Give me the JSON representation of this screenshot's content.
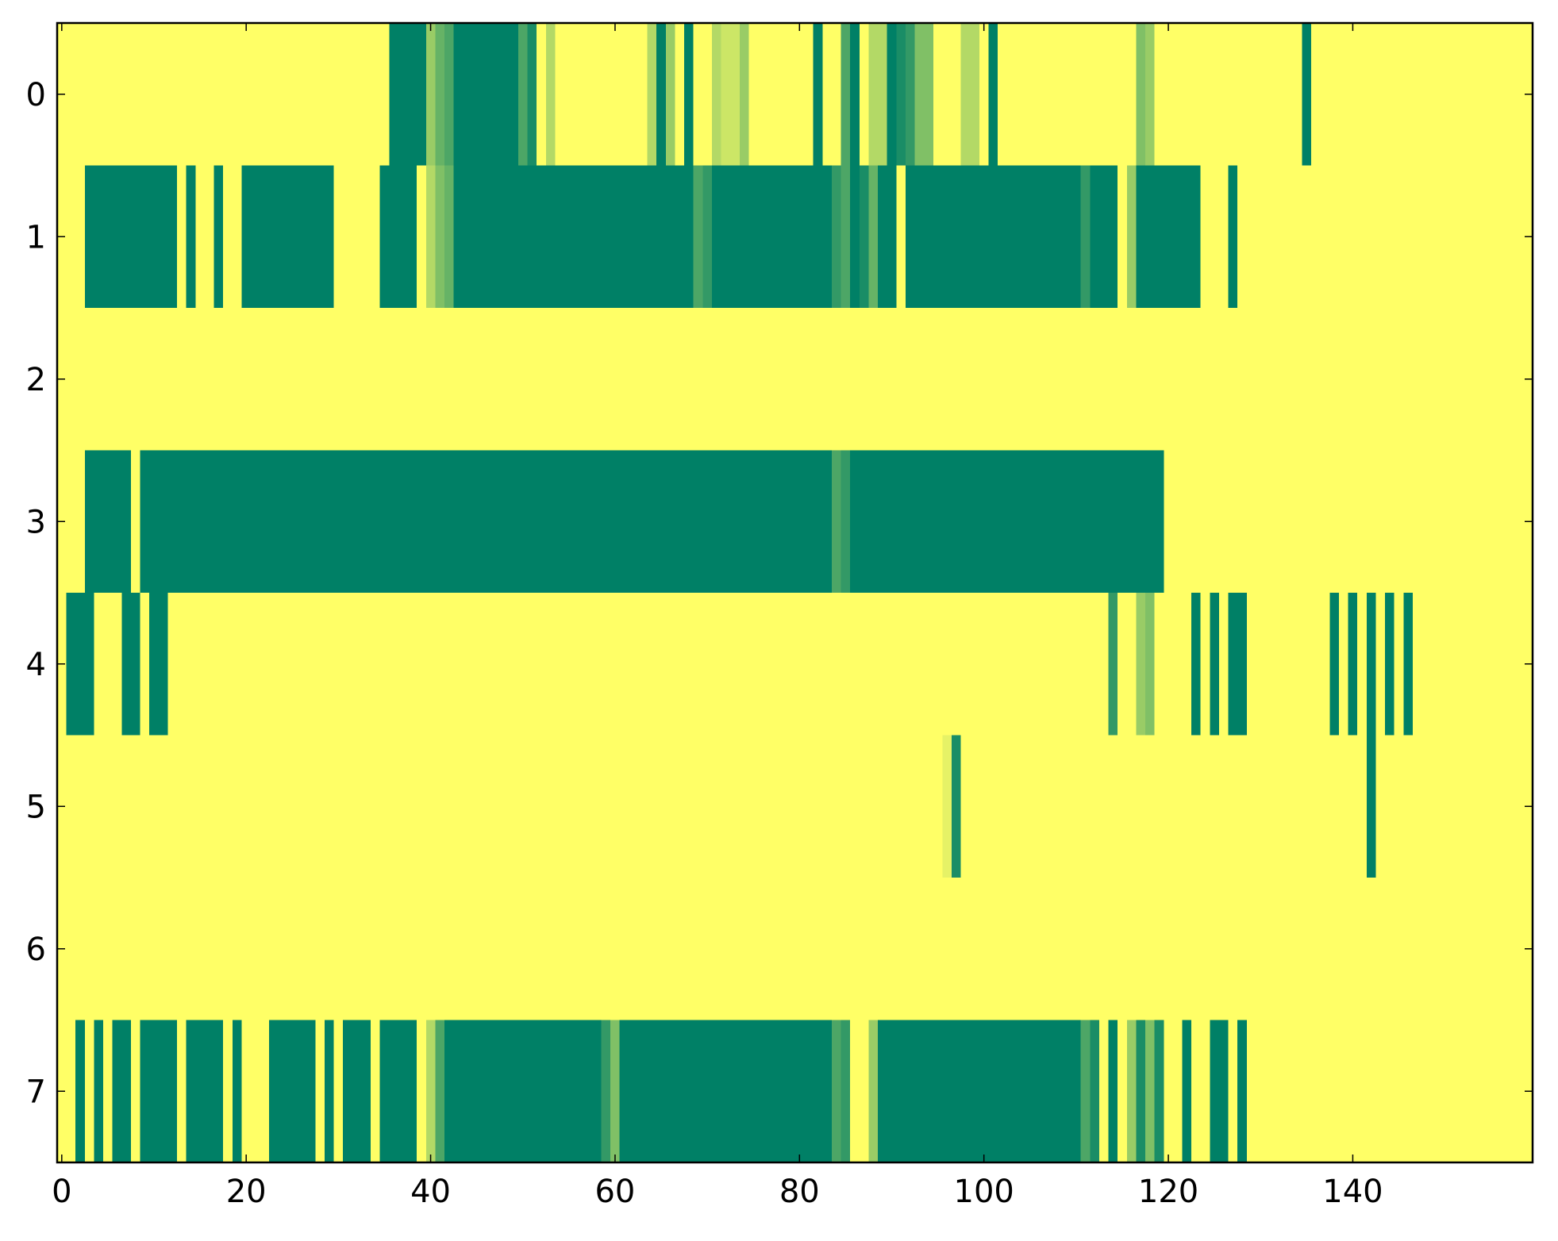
{
  "chart_data": {
    "type": "heatmap",
    "colormap": [
      "#ffff66",
      "#008066"
    ],
    "clim": [
      0,
      1
    ],
    "xlim": [
      -0.5,
      159.5
    ],
    "ylim": [
      7.5,
      -0.5
    ],
    "xticks": [
      0,
      20,
      40,
      60,
      80,
      100,
      120,
      140
    ],
    "yticks": [
      0,
      1,
      2,
      3,
      4,
      5,
      6,
      7
    ],
    "values": [
      [
        0,
        0,
        0,
        0,
        0,
        0,
        0,
        0,
        0,
        0,
        0,
        0,
        0,
        0,
        0,
        0,
        0,
        0,
        0,
        0,
        0,
        0,
        0,
        0,
        0,
        0,
        0,
        0,
        0,
        0,
        0,
        0,
        0,
        0,
        0,
        0,
        1,
        1,
        1,
        1,
        0.4,
        0.6,
        0.7,
        1,
        1,
        1,
        1,
        1,
        1,
        1,
        0.7,
        0.9,
        0,
        0.3,
        0,
        0,
        0,
        0,
        0,
        0,
        0,
        0,
        0,
        0,
        0.3,
        1,
        0.4,
        0,
        1,
        0,
        0,
        0.3,
        0.2,
        0.2,
        0.4,
        0,
        0,
        0,
        0,
        0,
        0,
        0,
        1,
        0,
        0,
        0.7,
        1,
        0,
        0.3,
        0.3,
        1,
        0.9,
        0.8,
        0.5,
        0.5,
        0,
        0,
        0,
        0.3,
        0.3,
        0,
        1,
        0,
        0,
        0,
        0,
        0,
        0,
        0,
        0,
        0,
        0,
        0,
        0,
        0,
        0,
        0,
        0.5,
        0.4,
        0,
        0,
        0,
        0,
        0,
        0,
        0,
        0,
        0,
        0,
        0,
        0,
        0,
        0,
        0,
        0,
        1,
        0,
        0,
        0,
        0,
        0,
        0,
        0,
        0,
        0,
        0,
        0,
        0,
        0,
        0,
        0,
        0,
        0,
        0,
        0,
        0,
        0,
        0,
        0,
        0
      ],
      [
        0,
        0,
        0,
        1,
        1,
        1,
        1,
        1,
        1,
        1,
        1,
        1,
        1,
        0,
        1,
        0,
        0,
        1,
        0,
        0,
        1,
        1,
        1,
        1,
        1,
        1,
        1,
        1,
        1,
        1,
        0,
        0,
        0,
        0,
        0,
        1,
        1,
        1,
        1,
        0,
        0.3,
        0.5,
        0.6,
        1,
        1,
        1,
        1,
        1,
        1,
        1,
        1,
        1,
        1,
        1,
        1,
        1,
        1,
        1,
        1,
        1,
        1,
        1,
        1,
        1,
        1,
        1,
        1,
        1,
        1,
        0.7,
        0.8,
        1,
        1,
        1,
        1,
        1,
        1,
        1,
        1,
        1,
        1,
        1,
        1,
        1,
        0.8,
        0.7,
        1,
        0.9,
        0.6,
        1,
        1,
        0,
        1,
        1,
        1,
        1,
        1,
        1,
        1,
        1,
        1,
        1,
        1,
        1,
        1,
        1,
        1,
        1,
        1,
        1,
        1,
        0.8,
        1,
        1,
        1,
        0,
        0.4,
        1,
        1,
        1,
        1,
        1,
        1,
        1,
        0,
        0,
        0,
        1,
        0,
        0,
        0,
        0,
        0,
        0,
        0,
        0,
        0,
        0,
        0,
        0,
        0,
        0,
        0,
        0,
        0,
        0,
        0,
        0,
        0,
        0,
        0,
        0,
        0,
        0,
        0,
        0,
        0,
        0,
        0,
        0
      ],
      [
        0,
        0,
        0,
        0,
        0,
        0,
        0,
        0,
        0,
        0,
        0,
        0,
        0,
        0,
        0,
        0,
        0,
        0,
        0,
        0,
        0,
        0,
        0,
        0,
        0,
        0,
        0,
        0,
        0,
        0,
        0,
        0,
        0,
        0,
        0,
        0,
        0,
        0,
        0,
        0,
        0,
        0,
        0,
        0,
        0,
        0,
        0,
        0,
        0,
        0,
        0,
        0,
        0,
        0,
        0,
        0,
        0,
        0,
        0,
        0,
        0,
        0,
        0,
        0,
        0,
        0,
        0,
        0,
        0,
        0,
        0,
        0,
        0,
        0,
        0,
        0,
        0,
        0,
        0,
        0,
        0,
        0,
        0,
        0,
        0,
        0,
        0,
        0,
        0,
        0,
        0,
        0,
        0,
        0,
        0,
        0,
        0,
        0,
        0,
        0,
        0,
        0,
        0,
        0,
        0,
        0,
        0,
        0,
        0,
        0,
        0,
        0,
        0,
        0,
        0,
        0,
        0,
        0,
        0,
        0,
        0,
        0,
        0,
        0,
        0,
        0,
        0,
        0,
        0,
        0,
        0,
        0,
        0,
        0,
        0,
        0,
        0,
        0,
        0,
        0,
        0,
        0,
        0,
        0,
        0,
        0,
        0,
        0,
        0,
        0,
        0,
        0,
        0,
        0,
        0,
        0,
        0,
        0,
        0,
        0
      ],
      [
        0,
        0,
        0,
        1,
        1,
        1,
        1,
        1,
        0,
        1,
        1,
        1,
        1,
        1,
        1,
        1,
        1,
        1,
        1,
        1,
        1,
        1,
        1,
        1,
        1,
        1,
        1,
        1,
        1,
        1,
        1,
        1,
        1,
        1,
        1,
        1,
        1,
        1,
        1,
        1,
        1,
        1,
        1,
        1,
        1,
        1,
        1,
        1,
        1,
        1,
        1,
        1,
        1,
        1,
        1,
        1,
        1,
        1,
        1,
        1,
        1,
        1,
        1,
        1,
        1,
        1,
        1,
        1,
        1,
        1,
        1,
        1,
        1,
        1,
        1,
        1,
        1,
        1,
        1,
        1,
        1,
        1,
        1,
        1,
        0.7,
        0.8,
        1,
        1,
        1,
        1,
        1,
        1,
        1,
        1,
        1,
        1,
        1,
        1,
        1,
        1,
        1,
        1,
        1,
        1,
        1,
        1,
        1,
        1,
        1,
        1,
        1,
        1,
        1,
        1,
        1,
        1,
        1,
        1,
        1,
        1,
        0,
        0,
        0,
        0,
        0,
        0,
        0,
        0,
        0,
        0,
        0,
        0,
        0,
        0,
        0,
        0,
        0,
        0,
        0,
        0,
        0,
        0,
        0,
        0,
        0,
        0,
        0,
        0,
        0,
        0,
        0,
        0,
        0,
        0,
        0,
        0,
        0,
        0,
        0,
        0
      ],
      [
        0,
        1,
        1,
        1,
        0,
        0,
        0,
        1,
        1,
        0,
        1,
        1,
        0,
        0,
        0,
        0,
        0,
        0,
        0,
        0,
        0,
        0,
        0,
        0,
        0,
        0,
        0,
        0,
        0,
        0,
        0,
        0,
        0,
        0,
        0,
        0,
        0,
        0,
        0,
        0,
        0,
        0,
        0,
        0,
        0,
        0,
        0,
        0,
        0,
        0,
        0,
        0,
        0,
        0,
        0,
        0,
        0,
        0,
        0,
        0,
        0,
        0,
        0,
        0,
        0,
        0,
        0,
        0,
        0,
        0,
        0,
        0,
        0,
        0,
        0,
        0,
        0,
        0,
        0,
        0,
        0,
        0,
        0,
        0,
        0,
        0,
        0,
        0,
        0,
        0,
        0,
        0,
        0,
        0,
        0,
        0,
        0,
        0,
        0,
        0,
        0,
        0,
        0,
        0,
        0,
        0,
        0,
        0,
        0,
        0,
        0,
        0,
        0,
        0,
        0.8,
        0,
        0,
        0.4,
        0.5,
        0,
        0,
        0,
        0,
        1,
        0,
        1,
        0,
        1,
        1,
        0,
        0,
        0,
        0,
        0,
        0,
        0,
        0,
        0,
        1,
        0,
        1,
        0,
        1,
        0,
        1,
        0,
        1,
        0,
        0,
        0,
        0,
        0,
        0,
        0,
        0,
        0,
        0,
        0,
        0,
        0
      ],
      [
        0,
        0,
        0,
        0,
        0,
        0,
        0,
        0,
        0,
        0,
        0,
        0,
        0,
        0,
        0,
        0,
        0,
        0,
        0,
        0,
        0,
        0,
        0,
        0,
        0,
        0,
        0,
        0,
        0,
        0,
        0,
        0,
        0,
        0,
        0,
        0,
        0,
        0,
        0,
        0,
        0,
        0,
        0,
        0,
        0,
        0,
        0,
        0,
        0,
        0,
        0,
        0,
        0,
        0,
        0,
        0,
        0,
        0,
        0,
        0,
        0,
        0,
        0,
        0,
        0,
        0,
        0,
        0,
        0,
        0,
        0,
        0,
        0,
        0,
        0,
        0,
        0,
        0,
        0,
        0,
        0,
        0,
        0,
        0,
        0,
        0,
        0,
        0,
        0,
        0,
        0,
        0,
        0,
        0,
        0,
        0,
        0.1,
        0.9,
        0,
        0,
        0,
        0,
        0,
        0,
        0,
        0,
        0,
        0,
        0,
        0,
        0,
        0,
        0,
        0,
        0,
        0,
        0,
        0,
        0,
        0,
        0,
        0,
        0,
        0,
        0,
        0,
        0,
        0,
        0,
        0,
        0,
        0,
        0,
        0,
        0,
        0,
        0,
        0,
        0,
        0,
        0,
        0,
        1,
        0,
        0,
        0,
        0,
        0,
        0,
        0,
        0,
        0,
        0,
        0,
        0,
        0,
        0,
        0,
        0,
        0
      ],
      [
        0,
        0,
        0,
        0,
        0,
        0,
        0,
        0,
        0,
        0,
        0,
        0,
        0,
        0,
        0,
        0,
        0,
        0,
        0,
        0,
        0,
        0,
        0,
        0,
        0,
        0,
        0,
        0,
        0,
        0,
        0,
        0,
        0,
        0,
        0,
        0,
        0,
        0,
        0,
        0,
        0,
        0,
        0,
        0,
        0,
        0,
        0,
        0,
        0,
        0,
        0,
        0,
        0,
        0,
        0,
        0,
        0,
        0,
        0,
        0,
        0,
        0,
        0,
        0,
        0,
        0,
        0,
        0,
        0,
        0,
        0,
        0,
        0,
        0,
        0,
        0,
        0,
        0,
        0,
        0,
        0,
        0,
        0,
        0,
        0,
        0,
        0,
        0,
        0,
        0,
        0,
        0,
        0,
        0,
        0,
        0,
        0,
        0,
        0,
        0,
        0,
        0,
        0,
        0,
        0,
        0,
        0,
        0,
        0,
        0,
        0,
        0,
        0,
        0,
        0,
        0,
        0,
        0,
        0,
        0,
        0,
        0,
        0,
        0,
        0,
        0,
        0,
        0,
        0,
        0,
        0,
        0,
        0,
        0,
        0,
        0,
        0,
        0,
        0,
        0,
        0,
        0,
        0,
        0,
        0,
        0,
        0,
        0,
        0,
        0,
        0,
        0,
        0,
        0,
        0,
        0,
        0,
        0,
        0,
        0
      ],
      [
        0,
        0,
        1,
        0,
        1,
        0,
        1,
        1,
        0,
        1,
        1,
        1,
        1,
        0,
        1,
        1,
        1,
        1,
        0,
        1,
        0,
        0,
        0,
        1,
        1,
        1,
        1,
        1,
        0,
        1,
        0,
        1,
        1,
        1,
        0,
        1,
        1,
        1,
        1,
        0,
        0.3,
        0.7,
        1,
        1,
        1,
        1,
        1,
        1,
        1,
        1,
        1,
        1,
        1,
        1,
        1,
        1,
        1,
        1,
        1,
        0.8,
        0.5,
        1,
        1,
        1,
        1,
        1,
        1,
        1,
        1,
        1,
        1,
        1,
        1,
        1,
        1,
        1,
        1,
        1,
        1,
        1,
        1,
        1,
        1,
        1,
        0.7,
        0.8,
        0,
        0,
        0.4,
        1,
        1,
        1,
        1,
        1,
        1,
        1,
        1,
        1,
        1,
        1,
        1,
        1,
        1,
        1,
        1,
        1,
        1,
        1,
        1,
        1,
        1,
        0.7,
        0.9,
        0,
        1,
        0,
        0.4,
        0.9,
        0.5,
        0.9,
        0,
        0,
        1,
        0,
        0,
        1,
        1,
        0,
        1,
        0,
        0,
        0,
        0,
        0,
        0,
        0,
        0,
        0,
        0,
        0,
        0,
        0,
        0,
        0,
        0,
        0,
        0,
        0,
        0,
        0,
        0,
        0,
        0,
        0,
        0,
        0,
        0,
        0,
        0,
        0
      ]
    ]
  }
}
